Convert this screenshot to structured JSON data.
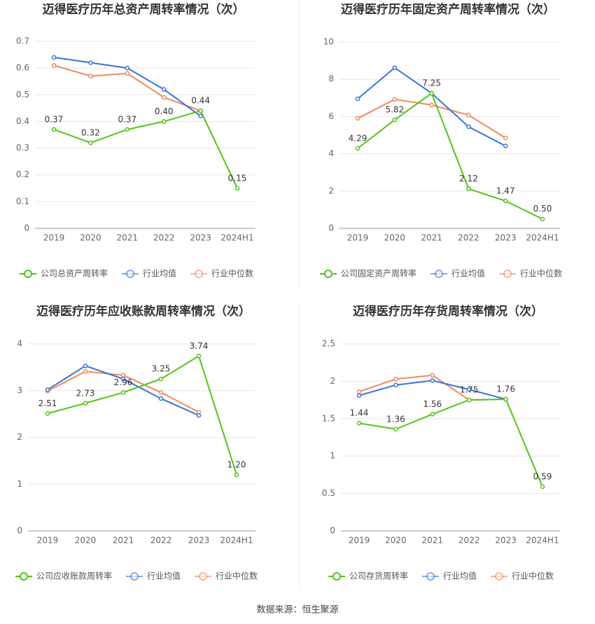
{
  "chart_data": [
    {
      "type": "line",
      "title": "迈得医疗历年总资产周转率情况（次）",
      "categories": [
        "2019",
        "2020",
        "2021",
        "2022",
        "2023",
        "2024H1"
      ],
      "series": [
        {
          "name": "公司总资产周转率",
          "color": "#52c41a",
          "values": [
            0.37,
            0.32,
            0.37,
            0.4,
            0.44,
            0.15
          ],
          "value_labels": [
            "0.37",
            "0.32",
            "0.37",
            "0.40",
            "0.44",
            "0.15"
          ]
        },
        {
          "name": "行业均值",
          "color": "#3b74d9",
          "values": [
            0.64,
            0.62,
            0.6,
            0.52,
            0.42,
            null
          ]
        },
        {
          "name": "行业中位数",
          "color": "#f08a5d",
          "values": [
            0.61,
            0.57,
            0.58,
            0.49,
            0.44,
            null
          ]
        }
      ],
      "ylim": [
        0,
        0.7
      ],
      "yticks": [
        0,
        0.1,
        0.2,
        0.3,
        0.4,
        0.5,
        0.6,
        0.7
      ],
      "grid": true
    },
    {
      "type": "line",
      "title": "迈得医疗历年固定资产周转率情况（次）",
      "categories": [
        "2019",
        "2020",
        "2021",
        "2022",
        "2023",
        "2024H1"
      ],
      "series": [
        {
          "name": "公司固定资产周转率",
          "color": "#52c41a",
          "values": [
            4.29,
            5.82,
            7.25,
            2.12,
            1.47,
            0.5
          ],
          "value_labels": [
            "4.29",
            "5.82",
            "7.25",
            "2.12",
            "1.47",
            "0.50"
          ]
        },
        {
          "name": "行业均值",
          "color": "#3b74d9",
          "values": [
            6.95,
            8.62,
            7.25,
            5.45,
            4.42,
            null
          ]
        },
        {
          "name": "行业中位数",
          "color": "#f08a5d",
          "values": [
            5.9,
            6.92,
            6.62,
            6.08,
            4.85,
            null
          ]
        }
      ],
      "ylim": [
        0,
        10
      ],
      "yticks": [
        0,
        2,
        4,
        6,
        8,
        10
      ],
      "grid": true
    },
    {
      "type": "line",
      "title": "迈得医疗历年应收账款周转率情况（次）",
      "categories": [
        "2019",
        "2020",
        "2021",
        "2022",
        "2023",
        "2024H1"
      ],
      "series": [
        {
          "name": "公司应收账款周转率",
          "color": "#52c41a",
          "values": [
            2.51,
            2.73,
            2.96,
            3.25,
            3.74,
            1.2
          ],
          "value_labels": [
            "2.51",
            "2.73",
            "2.96",
            "3.25",
            "3.74",
            "1.20"
          ]
        },
        {
          "name": "行业均值",
          "color": "#3b74d9",
          "values": [
            3.02,
            3.53,
            3.25,
            2.83,
            2.47,
            null
          ]
        },
        {
          "name": "行业中位数",
          "color": "#f08a5d",
          "values": [
            2.99,
            3.41,
            3.33,
            2.96,
            2.54,
            null
          ]
        }
      ],
      "ylim": [
        0,
        4
      ],
      "yticks": [
        0,
        1,
        2,
        3,
        4
      ],
      "grid": true
    },
    {
      "type": "line",
      "title": "迈得医疗历年存货周转率情况（次）",
      "categories": [
        "2019",
        "2020",
        "2021",
        "2022",
        "2023",
        "2024H1"
      ],
      "series": [
        {
          "name": "公司存货周转率",
          "color": "#52c41a",
          "values": [
            1.44,
            1.36,
            1.56,
            1.75,
            1.76,
            0.59
          ],
          "value_labels": [
            "1.44",
            "1.36",
            "1.56",
            "1.75",
            "1.76",
            "0.59"
          ]
        },
        {
          "name": "行业均值",
          "color": "#3b74d9",
          "values": [
            1.81,
            1.95,
            2.01,
            1.89,
            1.76,
            null
          ]
        },
        {
          "name": "行业中位数",
          "color": "#f08a5d",
          "values": [
            1.86,
            2.03,
            2.08,
            1.75,
            1.76,
            null
          ]
        }
      ],
      "ylim": [
        0,
        2.5
      ],
      "yticks": [
        0,
        0.5,
        1,
        1.5,
        2,
        2.5
      ],
      "grid": true
    }
  ],
  "source": "数据来源：恒生聚源"
}
